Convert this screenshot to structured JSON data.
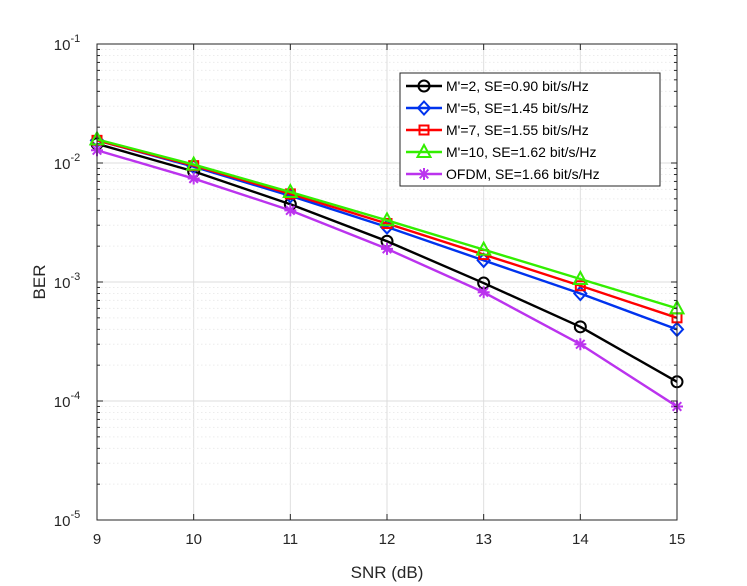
{
  "chart_data": {
    "type": "line",
    "title": "",
    "xlabel": "SNR (dB)",
    "ylabel": "BER",
    "xscale": "linear",
    "yscale": "log",
    "xlim": [
      9,
      15
    ],
    "ylim": [
      1e-05,
      0.1
    ],
    "grid": true,
    "legend_position": "top-right",
    "x": [
      9,
      10,
      11,
      12,
      13,
      14,
      15
    ],
    "x_ticks": [
      9,
      10,
      11,
      12,
      13,
      14,
      15
    ],
    "y_ticks": [
      {
        "value": 1e-05,
        "base": "10",
        "exp": "-5"
      },
      {
        "value": 0.0001,
        "base": "10",
        "exp": "-4"
      },
      {
        "value": 0.001,
        "base": "10",
        "exp": "-3"
      },
      {
        "value": 0.01,
        "base": "10",
        "exp": "-2"
      },
      {
        "value": 0.1,
        "base": "10",
        "exp": "-1"
      }
    ],
    "series": [
      {
        "name": "M'=2, SE=0.90 bit/s/Hz",
        "color": "#000000",
        "marker": "circle",
        "values": [
          0.0145,
          0.0085,
          0.0045,
          0.0022,
          0.00098,
          0.00042,
          0.000145
        ]
      },
      {
        "name": "M'=5, SE=1.45 bit/s/Hz",
        "color": "#0033ee",
        "marker": "diamond",
        "values": [
          0.0155,
          0.0093,
          0.0053,
          0.0029,
          0.00152,
          0.0008,
          0.0004
        ]
      },
      {
        "name": "M'=7, SE=1.55 bit/s/Hz",
        "color": "#ff0000",
        "marker": "square",
        "values": [
          0.0155,
          0.0095,
          0.0055,
          0.0031,
          0.0017,
          0.00093,
          0.0005
        ]
      },
      {
        "name": "M'=10, SE=1.62 bit/s/Hz",
        "color": "#33ee00",
        "marker": "triangle",
        "values": [
          0.0158,
          0.0097,
          0.0057,
          0.0033,
          0.00187,
          0.00106,
          0.0006
        ]
      },
      {
        "name": "OFDM, SE=1.66 bit/s/Hz",
        "color": "#bb33ee",
        "marker": "asterisk",
        "values": [
          0.0128,
          0.0074,
          0.004,
          0.0019,
          0.00082,
          0.0003,
          9e-05
        ]
      }
    ]
  }
}
